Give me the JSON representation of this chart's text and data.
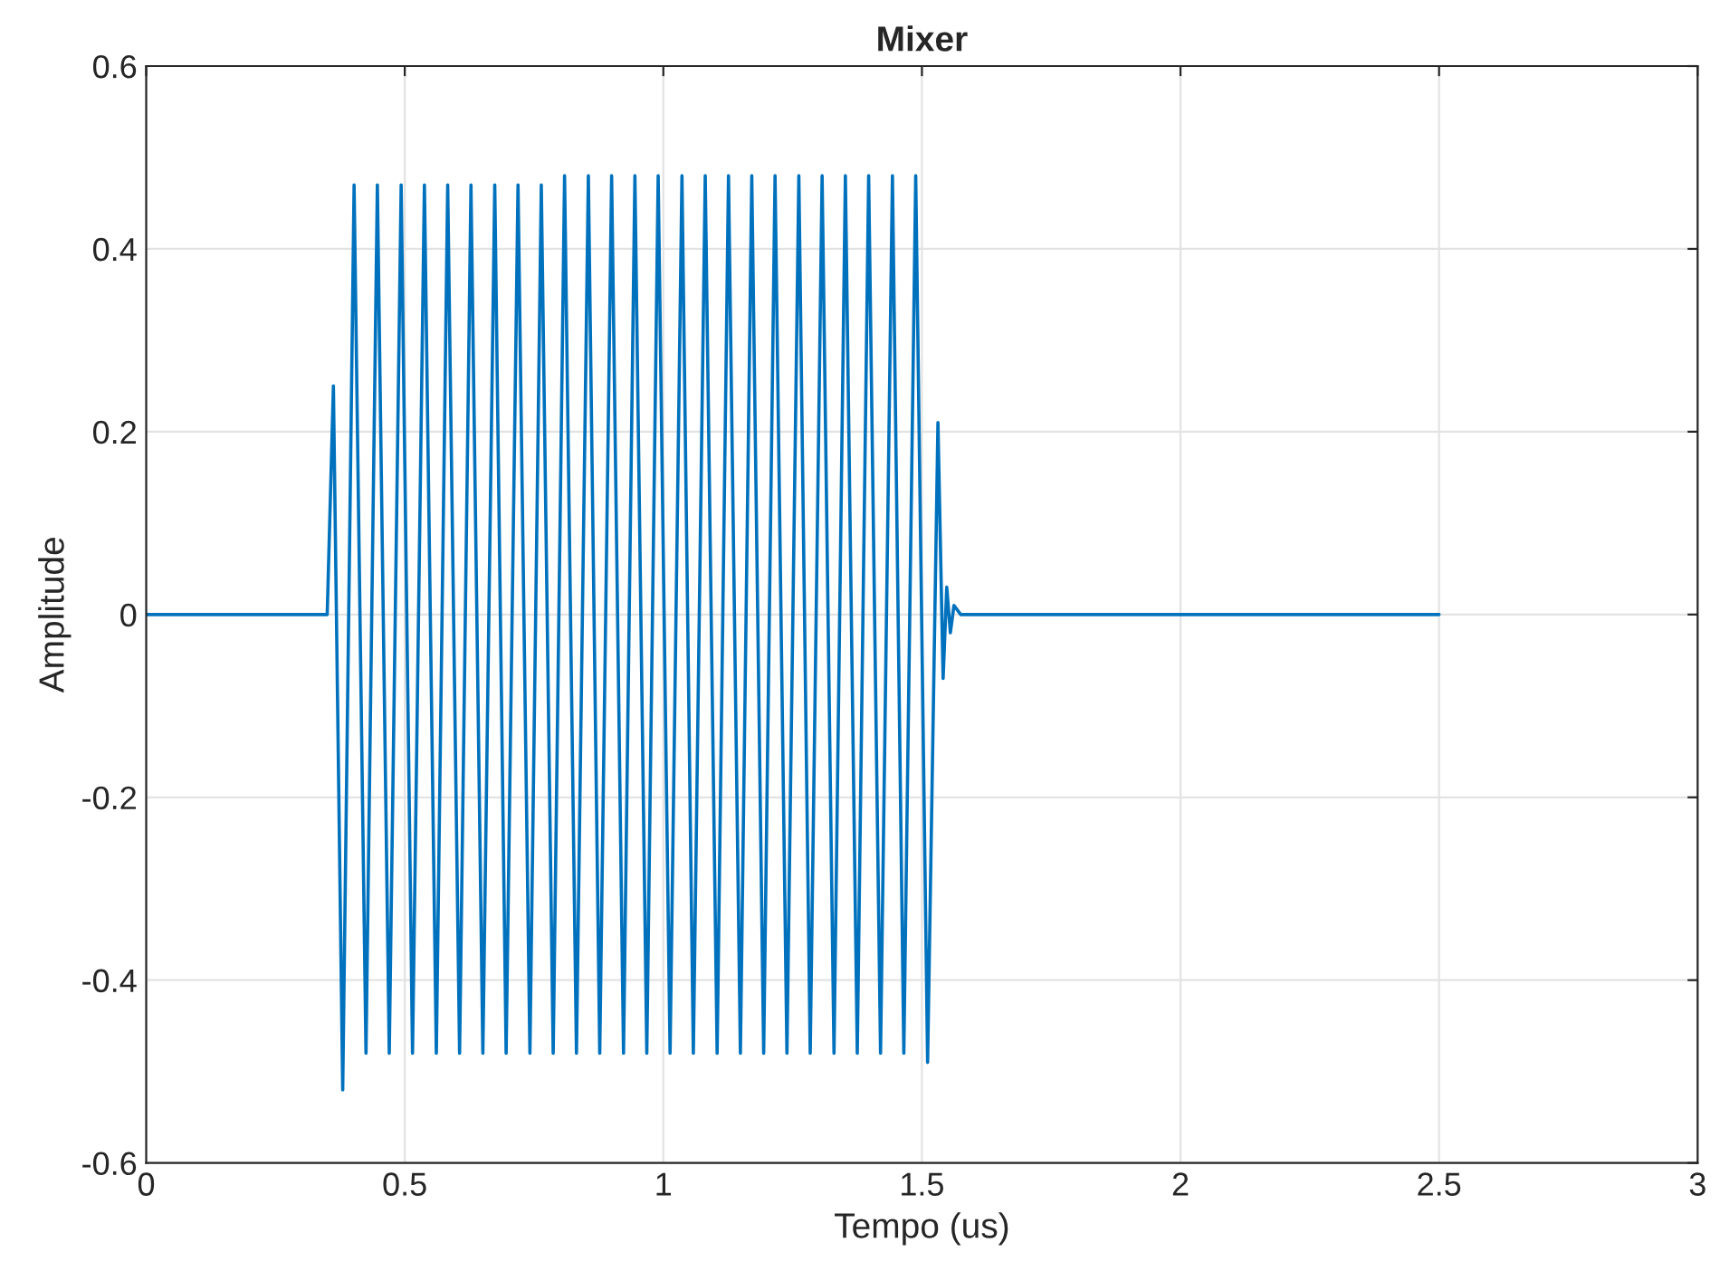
{
  "chart_data": {
    "type": "line",
    "title": "Mixer",
    "xlabel": "Tempo (us)",
    "ylabel": "Amplitude",
    "xlim": [
      0,
      3
    ],
    "xticks": [
      0,
      0.5,
      1,
      1.5,
      2,
      2.5,
      3
    ],
    "ylim": [
      -0.6,
      0.6
    ],
    "yticks": [
      -0.6,
      -0.4,
      -0.2,
      0,
      0.2,
      0.4,
      0.6
    ],
    "grid": true,
    "marker": "none",
    "line_style": "solid",
    "series": [
      {
        "color": "#0072bd",
        "x": [
          0,
          0.35,
          0.362,
          0.38,
          0.402,
          0.425,
          0.447,
          0.47,
          0.493,
          0.515,
          0.538,
          0.561,
          0.583,
          0.606,
          0.628,
          0.651,
          0.674,
          0.696,
          0.719,
          0.742,
          0.764,
          0.787,
          0.809,
          0.832,
          0.855,
          0.877,
          0.9,
          0.923,
          0.945,
          0.968,
          0.99,
          1.013,
          1.036,
          1.058,
          1.081,
          1.104,
          1.126,
          1.149,
          1.171,
          1.194,
          1.216,
          1.239,
          1.262,
          1.284,
          1.307,
          1.33,
          1.352,
          1.375,
          1.397,
          1.42,
          1.443,
          1.465,
          1.488,
          1.511,
          1.531,
          1.541,
          1.548,
          1.555,
          1.562,
          1.575,
          2.5
        ],
        "values": [
          0,
          0,
          0.25,
          -0.52,
          0.47,
          -0.48,
          0.47,
          -0.48,
          0.47,
          -0.48,
          0.47,
          -0.48,
          0.47,
          -0.48,
          0.47,
          -0.48,
          0.47,
          -0.48,
          0.47,
          -0.48,
          0.47,
          -0.48,
          0.48,
          -0.48,
          0.48,
          -0.48,
          0.48,
          -0.48,
          0.48,
          -0.48,
          0.48,
          -0.48,
          0.48,
          -0.48,
          0.48,
          -0.48,
          0.48,
          -0.48,
          0.48,
          -0.48,
          0.48,
          -0.48,
          0.48,
          -0.48,
          0.48,
          -0.48,
          0.48,
          -0.48,
          0.48,
          -0.48,
          0.48,
          -0.48,
          0.48,
          -0.49,
          0.21,
          -0.07,
          0.03,
          -0.02,
          0.01,
          0,
          0
        ]
      }
    ]
  }
}
